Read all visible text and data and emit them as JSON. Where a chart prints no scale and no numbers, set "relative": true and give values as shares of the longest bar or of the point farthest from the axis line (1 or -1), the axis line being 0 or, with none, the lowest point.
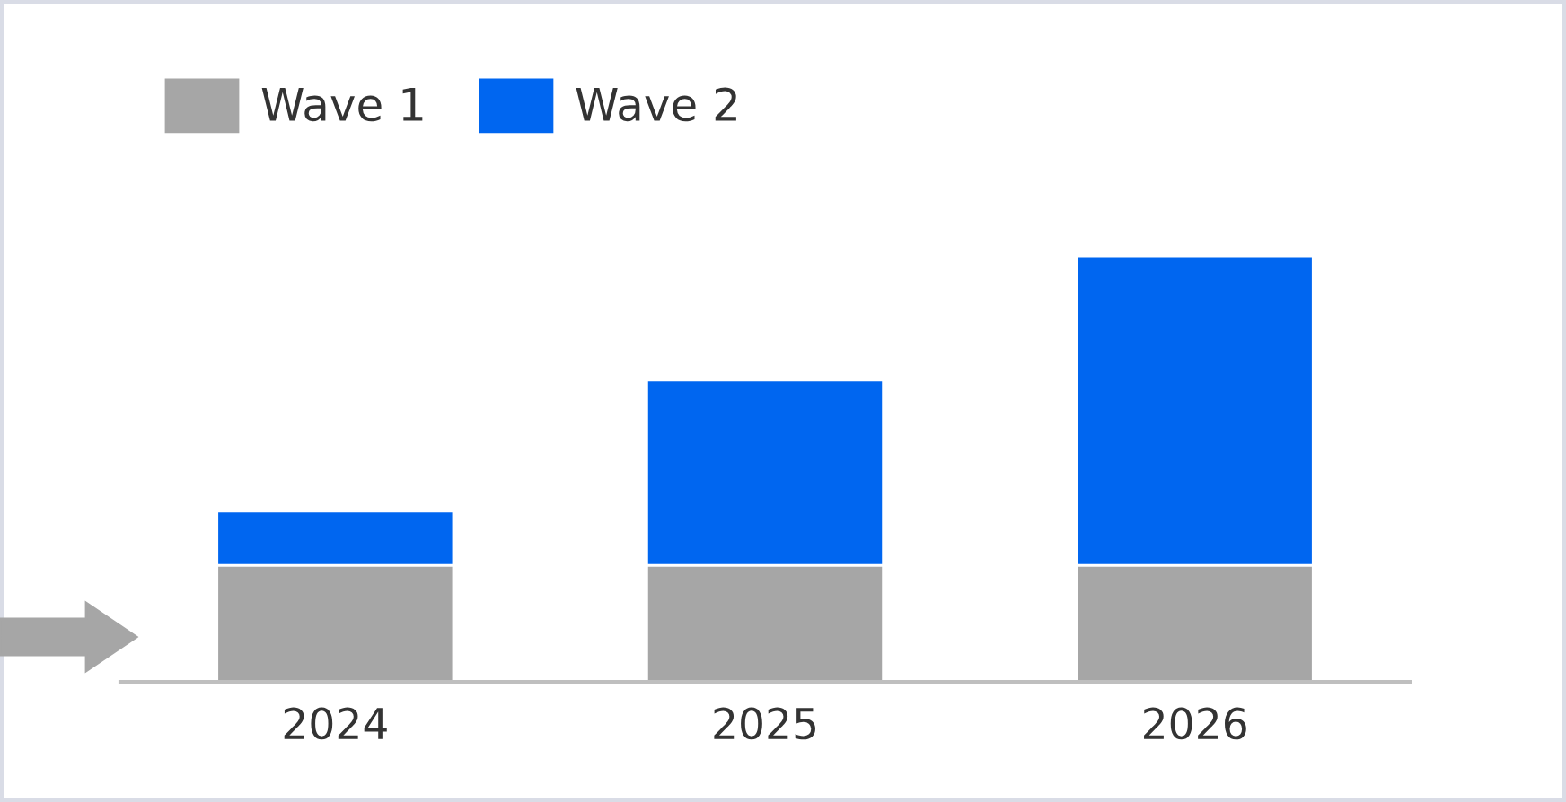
{
  "chart_data": {
    "type": "bar",
    "stacked": true,
    "relative": true,
    "categories": [
      "2024",
      "2025",
      "2026"
    ],
    "series": [
      {
        "name": "Wave 1",
        "color": "#a6a6a6",
        "values": [
          0.274,
          0.274,
          0.274
        ]
      },
      {
        "name": "Wave 2",
        "color": "#0066f0",
        "values": [
          0.127,
          0.435,
          0.726
        ]
      }
    ],
    "legend": "top left",
    "grid": false
  }
}
